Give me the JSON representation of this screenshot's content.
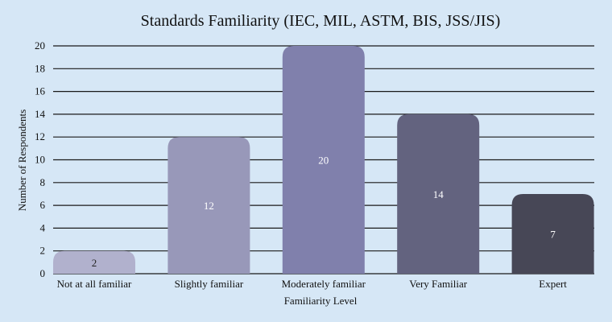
{
  "chart_data": {
    "type": "bar",
    "title": "Standards Familiarity (IEC, MIL, ASTM, BIS, JSS/JIS)",
    "xlabel": "Familiarity  Level",
    "ylabel": "Number of Respondents",
    "categories": [
      "Not at all  familiar",
      "Slightly  familiar",
      "Moderately  familiar",
      "Very Familiar",
      "Expert"
    ],
    "values": [
      2,
      12,
      20,
      14,
      7
    ],
    "data_labels": [
      "2",
      "12",
      "20",
      "14",
      "7"
    ],
    "ylim": [
      0,
      20
    ],
    "yticks": [
      0,
      2,
      4,
      6,
      8,
      10,
      12,
      14,
      16,
      18,
      20
    ],
    "grid": true,
    "bar_colors": [
      "#b1b1cd",
      "#9898b9",
      "#8080ac",
      "#63637f",
      "#474756"
    ],
    "label_colors": [
      "#222222",
      "#ffffff",
      "#ffffff",
      "#ffffff",
      "#ffffff"
    ],
    "background": "#d6e7f6"
  }
}
